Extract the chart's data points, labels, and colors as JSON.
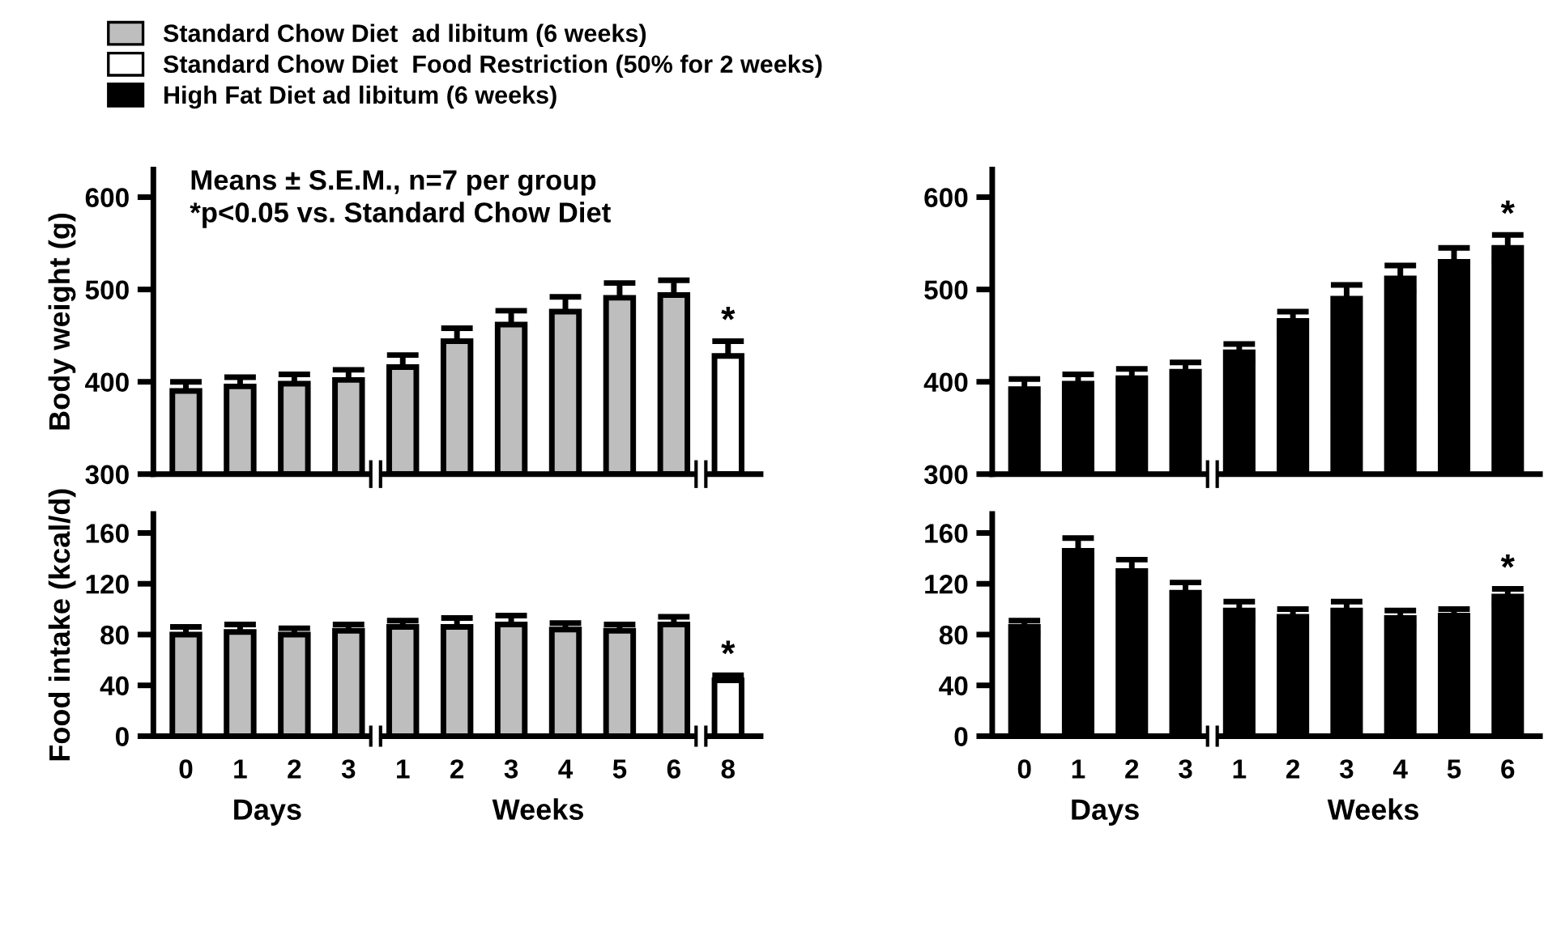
{
  "chart_data": [
    {
      "type": "bar",
      "ylabel": "Body weight (g)",
      "categories": [
        "0",
        "1",
        "2",
        "3",
        "1",
        "2",
        "3",
        "4",
        "5",
        "6",
        "8"
      ],
      "ylim": [
        300,
        630
      ],
      "yticks": [
        300,
        400,
        500,
        600
      ],
      "tick_labels": "y",
      "legend": "top left",
      "series": [
        {
          "name": "Standard Chow Diet  ad libitum (6 weeks)",
          "color": "#bebebe",
          "values": [
            390,
            395,
            398,
            402,
            416,
            444,
            462,
            476,
            491,
            494,
            null
          ],
          "errors": [
            10,
            10,
            10,
            11,
            13,
            14,
            15,
            16,
            16,
            16,
            null
          ]
        },
        {
          "name": "Standard Chow Diet  Food Restriction (50% for 2 weeks)",
          "color": "#ffffff",
          "values": [
            null,
            null,
            null,
            null,
            null,
            null,
            null,
            null,
            null,
            null,
            428
          ],
          "errors": [
            null,
            null,
            null,
            null,
            null,
            null,
            null,
            null,
            null,
            null,
            16
          ]
        }
      ],
      "annotations": [
        "Means ± S.E.M., n=7 per group",
        "*p<0.05 vs. Standard Chow Diet",
        {
          "text": "*",
          "x": "8",
          "y": 444
        }
      ]
    },
    {
      "type": "bar",
      "categories": [
        "0",
        "1",
        "2",
        "3",
        "1",
        "2",
        "3",
        "4",
        "5",
        "6"
      ],
      "ylim": [
        300,
        630
      ],
      "yticks": [
        300,
        400,
        500,
        600
      ],
      "tick_labels": "y",
      "legend": "top left",
      "series": [
        {
          "name": "High Fat Diet ad libitum (6 weeks)",
          "color": "#000000",
          "values": [
            392,
            398,
            404,
            411,
            432,
            466,
            490,
            512,
            530,
            545
          ],
          "errors": [
            11,
            10,
            10,
            10,
            9,
            10,
            15,
            14,
            15,
            14
          ]
        }
      ],
      "annotations": [
        {
          "text": "*",
          "x": "6",
          "y": 559
        }
      ]
    },
    {
      "type": "bar",
      "ylabel": "Food intake (kcal/d)",
      "categories": [
        "0",
        "1",
        "2",
        "3",
        "1",
        "2",
        "3",
        "4",
        "5",
        "6",
        "8"
      ],
      "ylim": [
        0,
        175
      ],
      "yticks": [
        0,
        40,
        80,
        120,
        160
      ],
      "series": [
        {
          "color": "#bebebe",
          "values": [
            80,
            82,
            80,
            83,
            86,
            86,
            88,
            84,
            83,
            88,
            null
          ],
          "errors": [
            6,
            6,
            5,
            5,
            5,
            7,
            7,
            5,
            5,
            6,
            null
          ]
        },
        {
          "color": "#ffffff",
          "values": [
            null,
            null,
            null,
            null,
            null,
            null,
            null,
            null,
            null,
            null,
            44
          ],
          "errors": [
            null,
            null,
            null,
            null,
            null,
            null,
            null,
            null,
            null,
            null,
            4
          ]
        }
      ],
      "annotations": [
        "Days",
        "Weeks",
        {
          "text": "*",
          "x": "8",
          "y": 48
        }
      ]
    },
    {
      "type": "bar",
      "categories": [
        "0",
        "1",
        "2",
        "3",
        "1",
        "2",
        "3",
        "4",
        "5",
        "6"
      ],
      "ylim": [
        0,
        175
      ],
      "yticks": [
        0,
        40,
        80,
        120,
        160
      ],
      "series": [
        {
          "color": "#000000",
          "values": [
            86,
            146,
            130,
            113,
            99,
            94,
            99,
            93,
            95,
            110
          ],
          "errors": [
            5,
            10,
            9,
            8,
            7,
            6,
            7,
            6,
            5,
            6
          ]
        }
      ],
      "annotations": [
        "Days",
        "Weeks",
        {
          "text": "*",
          "x": "6",
          "y": 116
        }
      ]
    }
  ]
}
